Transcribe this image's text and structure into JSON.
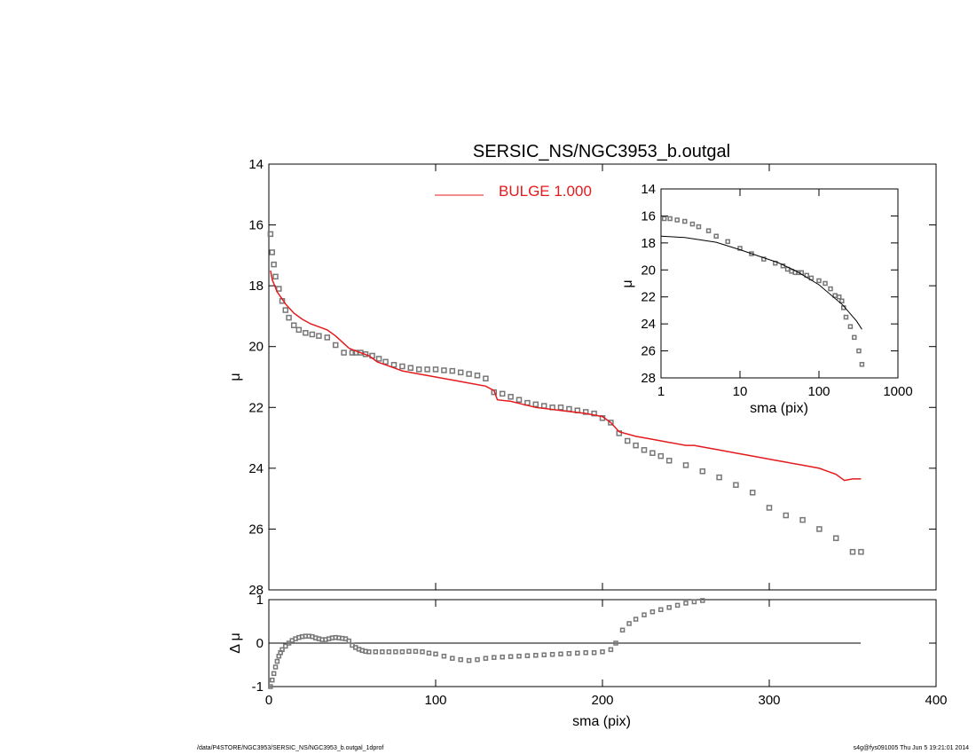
{
  "colors": {
    "model": "#e41a1c",
    "data": "#777777",
    "axis": "#000000"
  },
  "footer": {
    "left": "/data/P4STORE/NGC3953/SERSIC_NS/NGC3953_b.outgal_1dprof",
    "right": "s4g@fys091005  Thu Jun  5 19:21:01 2014"
  },
  "chart_data": [
    {
      "type": "scatter",
      "panel": "main",
      "title": "SERSIC_NS/NGC3953_b.outgal",
      "xlabel": "",
      "ylabel": "μ",
      "xlim": [
        0,
        400
      ],
      "ylim": [
        28,
        14
      ],
      "y_inverted": true,
      "yticks": [
        14,
        16,
        18,
        20,
        22,
        24,
        26,
        28
      ],
      "legend": {
        "position": "top-center",
        "entries": [
          {
            "name": "BULGE  1.000",
            "color": "#e41a1c"
          }
        ]
      },
      "series": [
        {
          "name": "",
          "kind": "points",
          "x": [
            1,
            2,
            3,
            4,
            6,
            8,
            10,
            12,
            15,
            18,
            22,
            26,
            30,
            35,
            40,
            45,
            50,
            52,
            55,
            58,
            62,
            66,
            70,
            75,
            80,
            85,
            90,
            95,
            100,
            105,
            110,
            115,
            120,
            125,
            130,
            135,
            140,
            145,
            150,
            155,
            160,
            165,
            170,
            175,
            180,
            185,
            190,
            195,
            200,
            205,
            210,
            215,
            220,
            225,
            230,
            235,
            240,
            250,
            260,
            270,
            280,
            290,
            300,
            310,
            320,
            330,
            340,
            350,
            355
          ],
          "y": [
            16.3,
            16.9,
            17.3,
            17.7,
            18.1,
            18.5,
            18.8,
            19.05,
            19.3,
            19.45,
            19.55,
            19.6,
            19.65,
            19.7,
            19.95,
            20.2,
            20.2,
            20.2,
            20.2,
            20.25,
            20.3,
            20.4,
            20.5,
            20.6,
            20.65,
            20.7,
            20.75,
            20.75,
            20.75,
            20.78,
            20.8,
            20.85,
            20.9,
            20.95,
            21.05,
            21.5,
            21.55,
            21.65,
            21.75,
            21.85,
            21.9,
            21.95,
            22.0,
            22.0,
            22.05,
            22.1,
            22.15,
            22.2,
            22.35,
            22.5,
            22.85,
            23.1,
            23.25,
            23.4,
            23.5,
            23.6,
            23.75,
            23.9,
            24.1,
            24.3,
            24.55,
            24.8,
            25.3,
            25.55,
            25.7,
            26.0,
            26.3,
            26.75,
            26.75
          ]
        },
        {
          "name": "BULGE  1.000",
          "kind": "line",
          "x": [
            1,
            2,
            5,
            10,
            15,
            20,
            25,
            30,
            35,
            40,
            45,
            48,
            50,
            55,
            60,
            65,
            70,
            75,
            80,
            90,
            100,
            110,
            120,
            130,
            135,
            137,
            145,
            160,
            175,
            190,
            200,
            205,
            210,
            220,
            230,
            240,
            250,
            255,
            260,
            270,
            280,
            290,
            300,
            310,
            320,
            330,
            335,
            340,
            345,
            350,
            355
          ],
          "y": [
            17.5,
            17.8,
            18.2,
            18.6,
            18.9,
            19.1,
            19.25,
            19.35,
            19.45,
            19.65,
            19.9,
            20.05,
            20.1,
            20.2,
            20.3,
            20.5,
            20.6,
            20.7,
            20.8,
            20.9,
            21.0,
            21.1,
            21.2,
            21.3,
            21.45,
            21.75,
            21.8,
            22.0,
            22.1,
            22.2,
            22.3,
            22.5,
            22.8,
            22.95,
            23.05,
            23.15,
            23.25,
            23.25,
            23.3,
            23.4,
            23.5,
            23.6,
            23.7,
            23.8,
            23.9,
            24.0,
            24.1,
            24.2,
            24.4,
            24.35,
            24.35
          ]
        }
      ]
    },
    {
      "type": "scatter",
      "panel": "inset",
      "title": "",
      "xlabel": "sma (pix)",
      "ylabel": "μ",
      "xscale": "log",
      "xlim": [
        1,
        1000
      ],
      "xticks": [
        "1",
        "10",
        "100",
        "1000"
      ],
      "ylim": [
        28,
        14
      ],
      "y_inverted": true,
      "yticks": [
        14,
        16,
        18,
        20,
        22,
        24,
        26,
        28
      ],
      "series": [
        {
          "name": "",
          "kind": "points",
          "x": [
            1.1,
            1.3,
            1.6,
            2,
            2.5,
            3,
            4,
            5,
            7,
            10,
            14,
            20,
            28,
            35,
            40,
            45,
            50,
            55,
            60,
            70,
            80,
            100,
            120,
            140,
            160,
            180,
            195,
            205,
            220,
            250,
            280,
            320,
            350
          ],
          "y": [
            16.2,
            16.2,
            16.3,
            16.4,
            16.6,
            16.8,
            17.1,
            17.5,
            17.9,
            18.4,
            18.8,
            19.2,
            19.5,
            19.7,
            19.95,
            20.1,
            20.2,
            20.2,
            20.2,
            20.4,
            20.6,
            20.8,
            21.0,
            21.4,
            21.9,
            22.0,
            22.3,
            22.8,
            23.5,
            24.2,
            25.0,
            26.0,
            27.0
          ]
        },
        {
          "name": "",
          "kind": "line",
          "x": [
            1,
            2,
            3,
            5,
            10,
            20,
            30,
            50,
            100,
            200,
            300,
            350
          ],
          "y": [
            17.5,
            17.6,
            17.75,
            17.95,
            18.5,
            19.1,
            19.45,
            20.05,
            21.1,
            22.6,
            23.8,
            24.4
          ]
        }
      ]
    },
    {
      "type": "scatter",
      "panel": "residual",
      "title": "",
      "xlabel": "sma (pix)",
      "ylabel": "Δ μ",
      "xlim": [
        0,
        400
      ],
      "xticks": [
        0,
        100,
        200,
        300,
        400
      ],
      "ylim": [
        -1,
        1
      ],
      "yticks": [
        -1,
        0,
        1
      ],
      "series": [
        {
          "name": "",
          "kind": "points",
          "x": [
            1,
            2,
            3,
            4,
            5,
            6,
            7,
            8,
            10,
            12,
            14,
            16,
            18,
            20,
            22,
            24,
            26,
            28,
            30,
            32,
            34,
            36,
            38,
            40,
            42,
            44,
            46,
            48,
            50,
            52,
            54,
            56,
            58,
            60,
            64,
            68,
            72,
            76,
            80,
            84,
            88,
            92,
            96,
            100,
            105,
            110,
            115,
            120,
            125,
            130,
            135,
            140,
            145,
            150,
            155,
            160,
            165,
            170,
            175,
            180,
            185,
            190,
            195,
            200,
            205,
            208,
            212,
            216,
            220,
            225,
            230,
            235,
            240,
            245,
            250,
            255,
            260
          ],
          "y": [
            -1.0,
            -0.85,
            -0.7,
            -0.55,
            -0.42,
            -0.3,
            -0.22,
            -0.15,
            -0.07,
            0.0,
            0.06,
            0.1,
            0.13,
            0.15,
            0.16,
            0.16,
            0.15,
            0.12,
            0.1,
            0.08,
            0.08,
            0.1,
            0.12,
            0.13,
            0.12,
            0.11,
            0.1,
            0.05,
            -0.05,
            -0.1,
            -0.14,
            -0.17,
            -0.19,
            -0.2,
            -0.2,
            -0.2,
            -0.2,
            -0.2,
            -0.2,
            -0.19,
            -0.19,
            -0.2,
            -0.23,
            -0.25,
            -0.3,
            -0.35,
            -0.38,
            -0.4,
            -0.38,
            -0.35,
            -0.33,
            -0.32,
            -0.31,
            -0.3,
            -0.29,
            -0.28,
            -0.27,
            -0.26,
            -0.25,
            -0.24,
            -0.23,
            -0.22,
            -0.22,
            -0.2,
            -0.15,
            0.0,
            0.3,
            0.45,
            0.55,
            0.65,
            0.72,
            0.77,
            0.82,
            0.87,
            0.92,
            0.95,
            0.98
          ]
        }
      ]
    }
  ]
}
